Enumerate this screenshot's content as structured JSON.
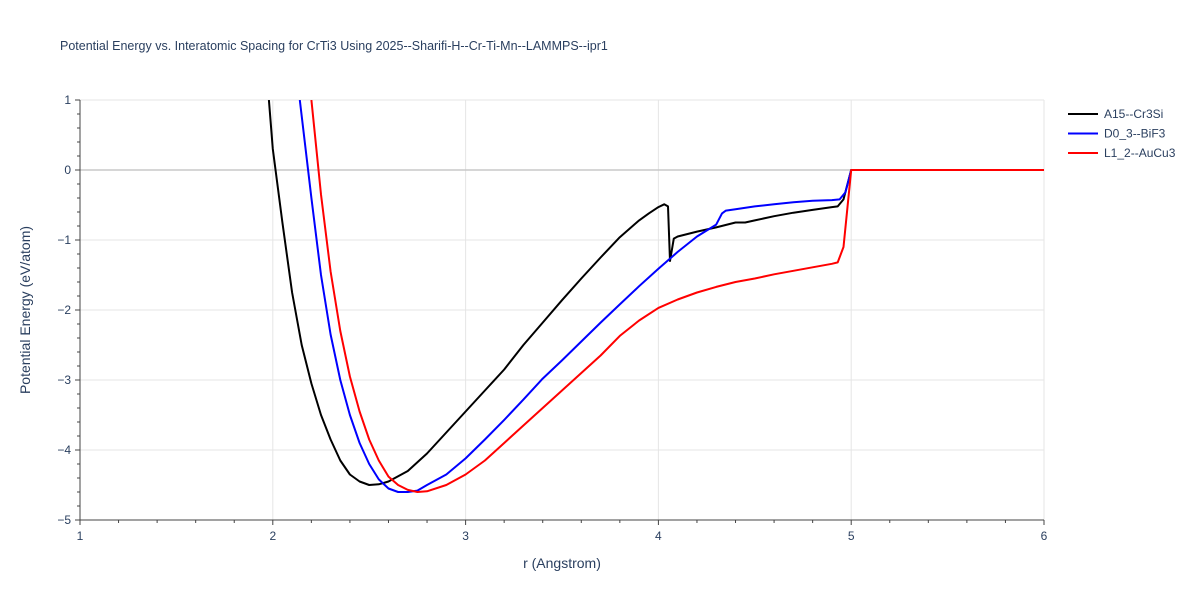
{
  "chart_data": {
    "type": "line",
    "title": "Potential Energy vs. Interatomic Spacing for CrTi3 Using 2025--Sharifi-H--Cr-Ti-Mn--LAMMPS--ipr1",
    "xlabel": "r (Angstrom)",
    "ylabel": "Potential Energy (eV/atom)",
    "xlim": [
      1,
      6
    ],
    "ylim": [
      -5,
      1
    ],
    "xticks": [
      1,
      2,
      3,
      4,
      5,
      6
    ],
    "yticks": [
      1,
      0,
      -1,
      -2,
      -3,
      -4,
      -5
    ],
    "ytick_labels": [
      "1",
      "0",
      "−1",
      "−2",
      "−3",
      "−4",
      "−5"
    ],
    "grid": true,
    "legend_position": "top-right",
    "series": [
      {
        "name": "A15--Cr3Si",
        "color": "#000000",
        "x": [
          1.98,
          2.0,
          2.05,
          2.1,
          2.15,
          2.2,
          2.25,
          2.3,
          2.35,
          2.4,
          2.45,
          2.5,
          2.55,
          2.6,
          2.7,
          2.8,
          2.9,
          3.0,
          3.1,
          3.2,
          3.3,
          3.4,
          3.5,
          3.6,
          3.7,
          3.8,
          3.9,
          3.95,
          4.0,
          4.03,
          4.05,
          4.06,
          4.08,
          4.1,
          4.2,
          4.3,
          4.4,
          4.45,
          4.5,
          4.6,
          4.7,
          4.8,
          4.9,
          4.93,
          4.96,
          5.0,
          5.5,
          6.0
        ],
        "y": [
          1.0,
          0.3,
          -0.75,
          -1.75,
          -2.5,
          -3.05,
          -3.5,
          -3.85,
          -4.15,
          -4.35,
          -4.45,
          -4.5,
          -4.49,
          -4.45,
          -4.3,
          -4.05,
          -3.75,
          -3.45,
          -3.15,
          -2.85,
          -2.5,
          -2.18,
          -1.86,
          -1.55,
          -1.25,
          -0.96,
          -0.72,
          -0.62,
          -0.53,
          -0.49,
          -0.52,
          -1.3,
          -0.98,
          -0.95,
          -0.88,
          -0.82,
          -0.75,
          -0.75,
          -0.72,
          -0.66,
          -0.61,
          -0.57,
          -0.53,
          -0.52,
          -0.42,
          0.0,
          0.0,
          0.0
        ]
      },
      {
        "name": "D0_3--BiF3",
        "color": "#0000ff",
        "x": [
          2.14,
          2.2,
          2.25,
          2.3,
          2.35,
          2.4,
          2.45,
          2.5,
          2.55,
          2.6,
          2.65,
          2.7,
          2.75,
          2.8,
          2.9,
          3.0,
          3.1,
          3.2,
          3.3,
          3.4,
          3.5,
          3.6,
          3.7,
          3.8,
          3.9,
          4.0,
          4.1,
          4.2,
          4.3,
          4.33,
          4.35,
          4.4,
          4.5,
          4.6,
          4.7,
          4.8,
          4.9,
          4.94,
          4.97,
          5.0,
          5.5,
          6.0
        ],
        "y": [
          1.0,
          -0.4,
          -1.5,
          -2.35,
          -3.0,
          -3.5,
          -3.9,
          -4.2,
          -4.42,
          -4.55,
          -4.6,
          -4.6,
          -4.58,
          -4.5,
          -4.35,
          -4.12,
          -3.85,
          -3.57,
          -3.28,
          -2.98,
          -2.72,
          -2.45,
          -2.18,
          -1.92,
          -1.66,
          -1.41,
          -1.17,
          -0.95,
          -0.78,
          -0.62,
          -0.58,
          -0.56,
          -0.52,
          -0.49,
          -0.46,
          -0.44,
          -0.43,
          -0.42,
          -0.32,
          0.0,
          0.0,
          0.0
        ]
      },
      {
        "name": "L1_2--AuCu3",
        "color": "#ff0000",
        "x": [
          2.2,
          2.25,
          2.3,
          2.35,
          2.4,
          2.45,
          2.5,
          2.55,
          2.6,
          2.65,
          2.7,
          2.75,
          2.8,
          2.9,
          3.0,
          3.1,
          3.2,
          3.3,
          3.4,
          3.5,
          3.6,
          3.7,
          3.8,
          3.9,
          4.0,
          4.1,
          4.2,
          4.3,
          4.4,
          4.5,
          4.6,
          4.7,
          4.8,
          4.9,
          4.93,
          4.96,
          5.0,
          5.5,
          6.0
        ],
        "y": [
          1.0,
          -0.35,
          -1.45,
          -2.3,
          -2.95,
          -3.45,
          -3.85,
          -4.15,
          -4.38,
          -4.5,
          -4.57,
          -4.6,
          -4.59,
          -4.5,
          -4.35,
          -4.15,
          -3.9,
          -3.65,
          -3.4,
          -3.15,
          -2.9,
          -2.65,
          -2.37,
          -2.15,
          -1.97,
          -1.85,
          -1.75,
          -1.67,
          -1.6,
          -1.55,
          -1.49,
          -1.44,
          -1.39,
          -1.34,
          -1.32,
          -1.1,
          0.0,
          0.0,
          0.0
        ]
      }
    ]
  }
}
